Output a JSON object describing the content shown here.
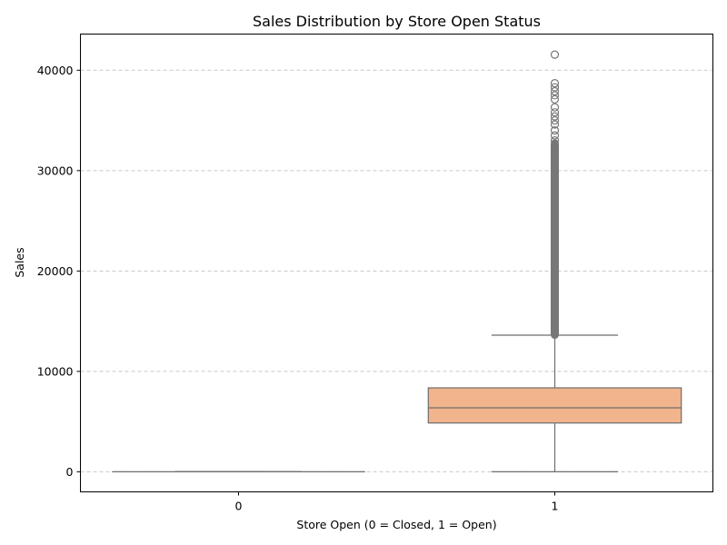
{
  "chart_data": {
    "type": "box",
    "title": "Sales Distribution by Store Open Status",
    "xlabel": "Store Open (0 = Closed, 1 = Open)",
    "ylabel": "Sales",
    "categories": [
      "0",
      "1"
    ],
    "ylim": [
      -2000,
      43600
    ],
    "yticks": [
      0,
      10000,
      20000,
      30000,
      40000
    ],
    "grid": "y-dashed",
    "boxes": [
      {
        "category": "0",
        "color": "#9ab4d6",
        "min": 0,
        "q1": 0,
        "median": 0,
        "q3": 0,
        "max": 0,
        "outliers": []
      },
      {
        "category": "1",
        "color": "#f2b48c",
        "min": 0,
        "q1": 4860,
        "median": 6370,
        "q3": 8360,
        "max": 13610,
        "outlier_band": [
          13650,
          32700
        ],
        "outliers": [
          33000,
          33500,
          34000,
          34600,
          35000,
          35400,
          35800,
          36300,
          37100,
          37500,
          37900,
          38300,
          38700,
          41550
        ]
      }
    ]
  }
}
